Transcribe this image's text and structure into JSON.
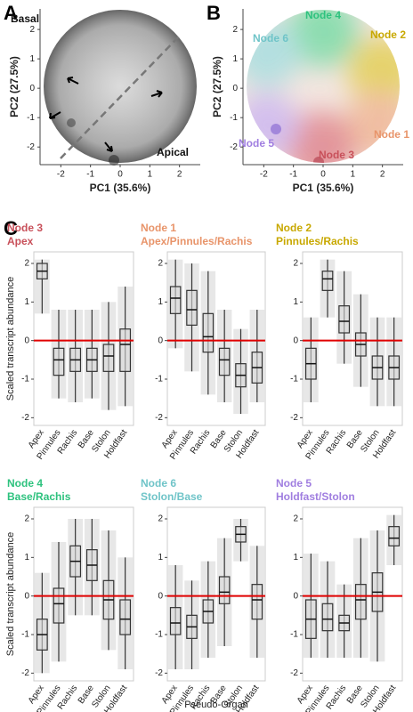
{
  "panel_labels": [
    "A",
    "B",
    "C"
  ],
  "chart_data": [
    {
      "type": "scatter",
      "xlim": [
        -2.7,
        2.7
      ],
      "ylim": [
        -2.6,
        2.7
      ],
      "xticks": [
        -2,
        -1,
        0,
        1,
        2
      ],
      "yticks": [
        -2,
        -1,
        0,
        1,
        2
      ],
      "x_label": "PC1 (35.6%)",
      "y_label": "PC2 (27.5%)",
      "annotations": [
        {
          "text": "Basal",
          "color": "#111111"
        },
        {
          "text": "Apical",
          "color": "#111111"
        }
      ]
    },
    {
      "type": "scatter",
      "xlim": [
        -2.7,
        2.7
      ],
      "ylim": [
        -2.6,
        2.7
      ],
      "xticks": [
        -2,
        -1,
        0,
        1,
        2
      ],
      "yticks": [
        -2,
        -1,
        0,
        1,
        2
      ],
      "x_label": "PC1 (35.6%)",
      "y_label": "PC2 (27.5%)",
      "annotations": [
        {
          "text": "Node 4",
          "color": "#2ec27e"
        },
        {
          "text": "Node 6",
          "color": "#6fc4c8"
        },
        {
          "text": "Node 2",
          "color": "#c8a800"
        },
        {
          "text": "Node 1",
          "color": "#e8946a"
        },
        {
          "text": "Node 3",
          "color": "#c8505a"
        },
        {
          "text": "Node 5",
          "color": "#a07ee0"
        }
      ]
    },
    {
      "type": "box",
      "title": "Node 3",
      "subtitle": "Apex",
      "color": "#c8505a",
      "y_label": "Scaled transcript abundance",
      "categories": [
        "Apex",
        "Pinnules",
        "Rachis",
        "Base",
        "Stolon",
        "Holdfast"
      ],
      "low": [
        0.7,
        -1.5,
        -1.6,
        -1.5,
        -1.8,
        -1.7
      ],
      "q1": [
        1.6,
        -0.9,
        -0.8,
        -0.8,
        -0.8,
        -0.8
      ],
      "median": [
        1.8,
        -0.5,
        -0.5,
        -0.5,
        -0.4,
        -0.1
      ],
      "q3": [
        2.0,
        -0.2,
        -0.2,
        -0.2,
        -0.1,
        0.3
      ],
      "high": [
        2.1,
        0.8,
        0.8,
        0.8,
        1.0,
        1.4
      ],
      "ylim": [
        -2.2,
        2.3
      ],
      "yticks": [
        -2,
        -1,
        0,
        1,
        2
      ],
      "reference_line": 0,
      "reference_color": "#e00000"
    },
    {
      "type": "box",
      "title": "Node 1",
      "subtitle": "Apex/Pinnules/Rachis",
      "color": "#e8946a",
      "categories": [
        "Apex",
        "Pinnules",
        "Rachis",
        "Base",
        "Stolon",
        "Holdfast"
      ],
      "low": [
        -0.2,
        -0.8,
        -1.4,
        -1.6,
        -1.9,
        -1.6
      ],
      "q1": [
        0.7,
        0.4,
        -0.3,
        -0.9,
        -1.2,
        -1.1
      ],
      "median": [
        1.1,
        0.8,
        0.1,
        -0.5,
        -0.9,
        -0.7
      ],
      "q3": [
        1.4,
        1.3,
        0.7,
        -0.2,
        -0.6,
        -0.3
      ],
      "high": [
        2.1,
        2.0,
        1.8,
        0.8,
        0.3,
        0.8
      ],
      "ylim": [
        -2.2,
        2.3
      ],
      "yticks": [
        -2,
        -1,
        0,
        1,
        2
      ],
      "reference_line": 0,
      "reference_color": "#e00000"
    },
    {
      "type": "box",
      "title": "Node 2",
      "subtitle": "Pinnules/Rachis",
      "color": "#c8a800",
      "categories": [
        "Apex",
        "Pinnules",
        "Rachis",
        "Base",
        "Stolon",
        "Holdfast"
      ],
      "low": [
        -1.6,
        0.6,
        -0.6,
        -1.2,
        -1.7,
        -1.7
      ],
      "q1": [
        -1.0,
        1.3,
        0.2,
        -0.4,
        -1.0,
        -1.0
      ],
      "median": [
        -0.6,
        1.6,
        0.5,
        -0.1,
        -0.7,
        -0.7
      ],
      "q3": [
        -0.2,
        1.8,
        0.9,
        0.2,
        -0.4,
        -0.4
      ],
      "high": [
        0.6,
        2.1,
        1.8,
        1.2,
        0.6,
        0.6
      ],
      "ylim": [
        -2.2,
        2.3
      ],
      "yticks": [
        -2,
        -1,
        0,
        1,
        2
      ],
      "reference_line": 0,
      "reference_color": "#e00000"
    },
    {
      "type": "box",
      "title": "Node 4",
      "subtitle": "Base/Rachis",
      "color": "#2ec27e",
      "y_label": "Scaled transcript abundance",
      "categories": [
        "Apex",
        "Pinnules",
        "Rachis",
        "Base",
        "Stolon",
        "Holdfast"
      ],
      "low": [
        -2.0,
        -1.7,
        -0.5,
        -0.5,
        -1.4,
        -1.9
      ],
      "q1": [
        -1.4,
        -0.7,
        0.5,
        0.4,
        -0.6,
        -1.0
      ],
      "median": [
        -1.0,
        -0.2,
        0.9,
        0.8,
        -0.1,
        -0.6
      ],
      "q3": [
        -0.6,
        0.2,
        1.3,
        1.2,
        0.4,
        -0.1
      ],
      "high": [
        0.6,
        1.4,
        2.0,
        2.0,
        1.7,
        1.0
      ],
      "ylim": [
        -2.2,
        2.3
      ],
      "yticks": [
        -2,
        -1,
        0,
        1,
        2
      ],
      "reference_line": 0,
      "reference_color": "#e00000"
    },
    {
      "type": "box",
      "title": "Node 6",
      "subtitle": "Stolon/Base",
      "color": "#6fc4c8",
      "x_label": "Pseudo-Organ",
      "categories": [
        "Apex",
        "Pinnules",
        "Rachis",
        "Base",
        "Stolon",
        "Holdfast"
      ],
      "low": [
        -1.9,
        -1.9,
        -1.6,
        -1.3,
        0.9,
        -1.6
      ],
      "q1": [
        -1.0,
        -1.1,
        -0.7,
        -0.2,
        1.4,
        -0.6
      ],
      "median": [
        -0.7,
        -0.8,
        -0.4,
        0.1,
        1.6,
        -0.1
      ],
      "q3": [
        -0.3,
        -0.5,
        -0.1,
        0.5,
        1.8,
        0.3
      ],
      "high": [
        0.8,
        0.4,
        0.9,
        1.5,
        2.0,
        1.3
      ],
      "ylim": [
        -2.2,
        2.3
      ],
      "yticks": [
        -2,
        -1,
        0,
        1,
        2
      ],
      "reference_line": 0,
      "reference_color": "#e00000"
    },
    {
      "type": "box",
      "title": "Node 5",
      "subtitle": "Holdfast/Stolon",
      "color": "#a07ee0",
      "categories": [
        "Apex",
        "Pinnules",
        "Rachis",
        "Base",
        "Stolon",
        "Holdfast"
      ],
      "low": [
        -1.6,
        -1.6,
        -1.6,
        -1.6,
        -1.7,
        0.8
      ],
      "q1": [
        -1.1,
        -0.9,
        -0.9,
        -0.6,
        -0.4,
        1.3
      ],
      "median": [
        -0.6,
        -0.6,
        -0.7,
        -0.1,
        0.1,
        1.5
      ],
      "q3": [
        -0.1,
        -0.2,
        -0.5,
        0.3,
        0.6,
        1.8
      ],
      "high": [
        1.1,
        0.9,
        0.3,
        1.5,
        1.7,
        2.1
      ],
      "ylim": [
        -2.2,
        2.3
      ],
      "yticks": [
        -2,
        -1,
        0,
        1,
        2
      ],
      "reference_line": 0,
      "reference_color": "#e00000"
    }
  ]
}
